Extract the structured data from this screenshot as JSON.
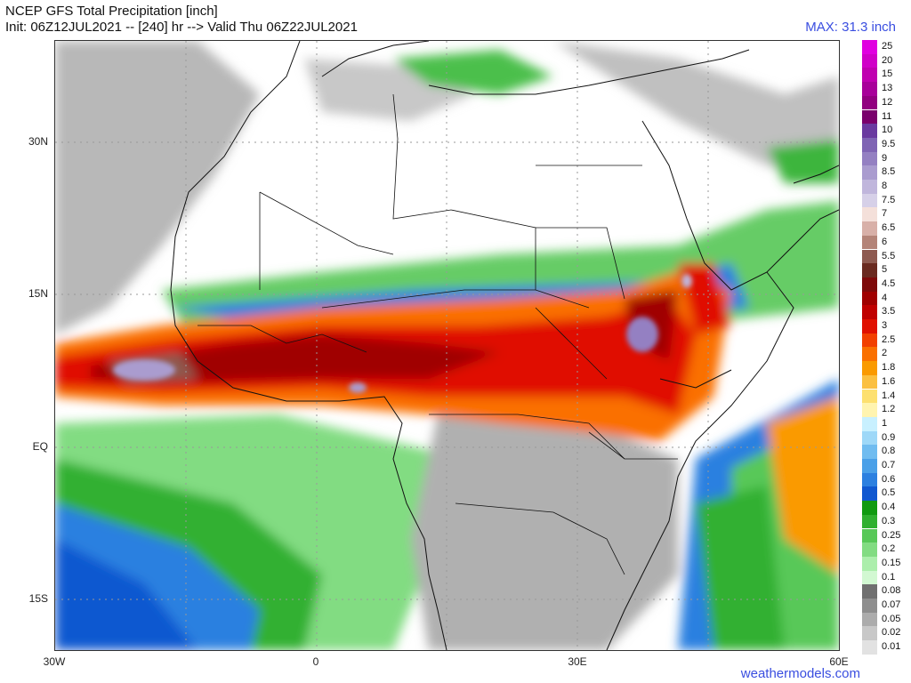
{
  "header": {
    "title_line1": "NCEP GFS Total Precipitation [inch]",
    "title_line2": "Init: 06Z12JUL2021 -- [240] hr --> Valid Thu 06Z22JUL2021",
    "max_label": "MAX: 31.3 inch"
  },
  "credit": "weathermodels.com",
  "axes": {
    "y_labels": [
      "30N",
      "15N",
      "EQ",
      "15S"
    ],
    "x_labels": [
      "30W",
      "0",
      "30E",
      "60E"
    ]
  },
  "legend": {
    "levels": [
      {
        "label": "25",
        "color": "#e000e0"
      },
      {
        "label": "20",
        "color": "#d000c8"
      },
      {
        "label": "15",
        "color": "#c000b0"
      },
      {
        "label": "13",
        "color": "#a8009a"
      },
      {
        "label": "12",
        "color": "#920080"
      },
      {
        "label": "11",
        "color": "#7a006c"
      },
      {
        "label": "10",
        "color": "#6a3aa0"
      },
      {
        "label": "9.5",
        "color": "#7f64b4"
      },
      {
        "label": "9",
        "color": "#9480c2"
      },
      {
        "label": "8.5",
        "color": "#aa9ccf"
      },
      {
        "label": "8",
        "color": "#c0b6dc"
      },
      {
        "label": "7.5",
        "color": "#d6d0e8"
      },
      {
        "label": "7",
        "color": "#f4e0da"
      },
      {
        "label": "6.5",
        "color": "#d8b0a8"
      },
      {
        "label": "6",
        "color": "#b48478"
      },
      {
        "label": "5.5",
        "color": "#8e5a50"
      },
      {
        "label": "5",
        "color": "#6a2a20"
      },
      {
        "label": "4.5",
        "color": "#7e0a0a"
      },
      {
        "label": "4",
        "color": "#a00000"
      },
      {
        "label": "3.5",
        "color": "#c00000"
      },
      {
        "label": "3",
        "color": "#e01000"
      },
      {
        "label": "2.5",
        "color": "#f24000"
      },
      {
        "label": "2",
        "color": "#fa7000"
      },
      {
        "label": "1.8",
        "color": "#fa9a00"
      },
      {
        "label": "1.6",
        "color": "#fbc040"
      },
      {
        "label": "1.4",
        "color": "#fde070"
      },
      {
        "label": "1.2",
        "color": "#fff4b0"
      },
      {
        "label": "1",
        "color": "#c8f0ff"
      },
      {
        "label": "0.9",
        "color": "#9ed8f8"
      },
      {
        "label": "0.8",
        "color": "#70bcf0"
      },
      {
        "label": "0.7",
        "color": "#4aa0e8"
      },
      {
        "label": "0.6",
        "color": "#2c80e0"
      },
      {
        "label": "0.5",
        "color": "#1058d0"
      },
      {
        "label": "0.4",
        "color": "#109a10"
      },
      {
        "label": "0.3",
        "color": "#30b030"
      },
      {
        "label": "0.25",
        "color": "#58c858"
      },
      {
        "label": "0.2",
        "color": "#82dc82"
      },
      {
        "label": "0.15",
        "color": "#aceeac"
      },
      {
        "label": "0.1",
        "color": "#d2f8d2"
      },
      {
        "label": "0.08",
        "color": "#707070"
      },
      {
        "label": "0.07",
        "color": "#8e8e8e"
      },
      {
        "label": "0.05",
        "color": "#acacac"
      },
      {
        "label": "0.02",
        "color": "#c8c8c8"
      },
      {
        "label": "0.01",
        "color": "#e2e2e2"
      }
    ]
  }
}
